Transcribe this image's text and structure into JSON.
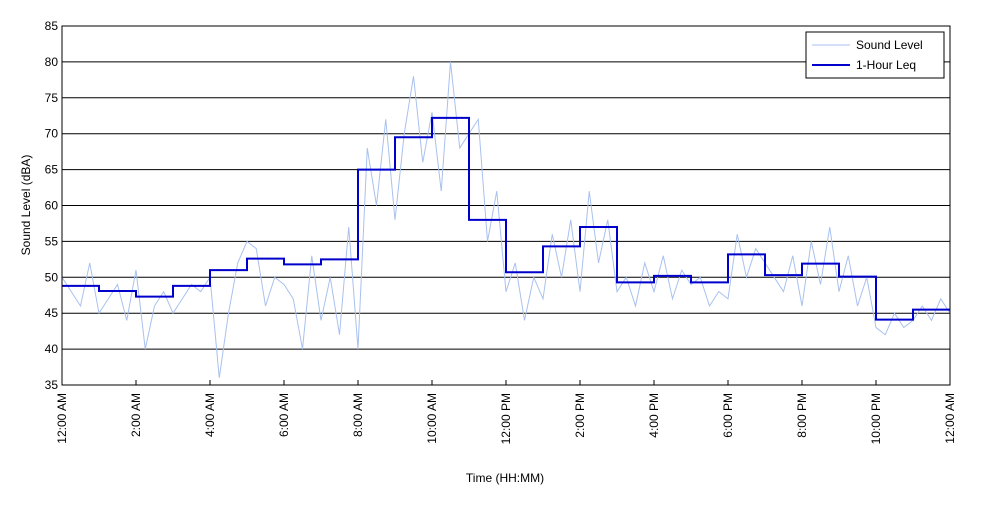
{
  "chart_data": {
    "type": "line",
    "xlabel": "Time (HH:MM)",
    "ylabel": "Sound Level (dBA)",
    "xlim": [
      0,
      24
    ],
    "ylim": [
      35,
      85
    ],
    "xticks": [
      {
        "value": 0,
        "label": "12:00 AM"
      },
      {
        "value": 2,
        "label": "2:00 AM"
      },
      {
        "value": 4,
        "label": "4:00 AM"
      },
      {
        "value": 6,
        "label": "6:00 AM"
      },
      {
        "value": 8,
        "label": "8:00 AM"
      },
      {
        "value": 10,
        "label": "10:00 AM"
      },
      {
        "value": 12,
        "label": "12:00 PM"
      },
      {
        "value": 14,
        "label": "2:00 PM"
      },
      {
        "value": 16,
        "label": "4:00 PM"
      },
      {
        "value": 18,
        "label": "6:00 PM"
      },
      {
        "value": 20,
        "label": "8:00 PM"
      },
      {
        "value": 22,
        "label": "10:00 PM"
      },
      {
        "value": 24,
        "label": "12:00 AM"
      }
    ],
    "yticks": [
      35,
      40,
      45,
      50,
      55,
      60,
      65,
      70,
      75,
      80,
      85
    ],
    "grid": true,
    "legend": "upper right",
    "series": [
      {
        "name": "Sound Level",
        "color": "#a9c1ef",
        "step": false,
        "x": [
          0,
          0.25,
          0.5,
          0.75,
          1,
          1.25,
          1.5,
          1.75,
          2,
          2.25,
          2.5,
          2.75,
          3,
          3.25,
          3.5,
          3.75,
          4,
          4.25,
          4.5,
          4.75,
          5,
          5.25,
          5.5,
          5.75,
          6,
          6.25,
          6.5,
          6.75,
          7,
          7.25,
          7.5,
          7.75,
          8,
          8.25,
          8.5,
          8.75,
          9,
          9.25,
          9.5,
          9.75,
          10,
          10.25,
          10.5,
          10.75,
          11,
          11.25,
          11.5,
          11.75,
          12,
          12.25,
          12.5,
          12.75,
          13,
          13.25,
          13.5,
          13.75,
          14,
          14.25,
          14.5,
          14.75,
          15,
          15.25,
          15.5,
          15.75,
          16,
          16.25,
          16.5,
          16.75,
          17,
          17.25,
          17.5,
          17.75,
          18,
          18.25,
          18.5,
          18.75,
          19,
          19.25,
          19.5,
          19.75,
          20,
          20.25,
          20.5,
          20.75,
          21,
          21.25,
          21.5,
          21.75,
          22,
          22.25,
          22.5,
          22.75,
          23,
          23.25,
          23.5,
          23.75,
          24
        ],
        "values": [
          50,
          48,
          46,
          52,
          45,
          47,
          49,
          44,
          51,
          40,
          46,
          48,
          45,
          47,
          49,
          48,
          50,
          36,
          45,
          52,
          55,
          54,
          46,
          50,
          49,
          47,
          40,
          53,
          44,
          50,
          42,
          57,
          40,
          68,
          60,
          72,
          58,
          70,
          78,
          66,
          73,
          62,
          80,
          68,
          70,
          72,
          55,
          62,
          48,
          52,
          44,
          50,
          47,
          56,
          50,
          58,
          48,
          62,
          52,
          58,
          48,
          50,
          46,
          52,
          48,
          53,
          47,
          51,
          49,
          50,
          46,
          48,
          47,
          56,
          50,
          54,
          52,
          50,
          48,
          53,
          46,
          55,
          49,
          57,
          48,
          53,
          46,
          50,
          43,
          42,
          45,
          43,
          44,
          46,
          44,
          47,
          45
        ]
      },
      {
        "name": "1-Hour Leq",
        "color": "#0000cc",
        "step": true,
        "x": [
          0,
          1,
          2,
          3,
          4,
          5,
          6,
          7,
          8,
          9,
          10,
          11,
          12,
          13,
          14,
          15,
          16,
          17,
          18,
          19,
          20,
          21,
          22,
          23
        ],
        "values": [
          48.8,
          48.1,
          47.3,
          48.8,
          51.0,
          52.6,
          51.8,
          52.5,
          65.0,
          69.5,
          72.2,
          58.0,
          50.7,
          54.3,
          57.0,
          49.3,
          50.2,
          49.3,
          53.2,
          50.3,
          51.9,
          50.1,
          44.1,
          45.5
        ]
      }
    ]
  }
}
